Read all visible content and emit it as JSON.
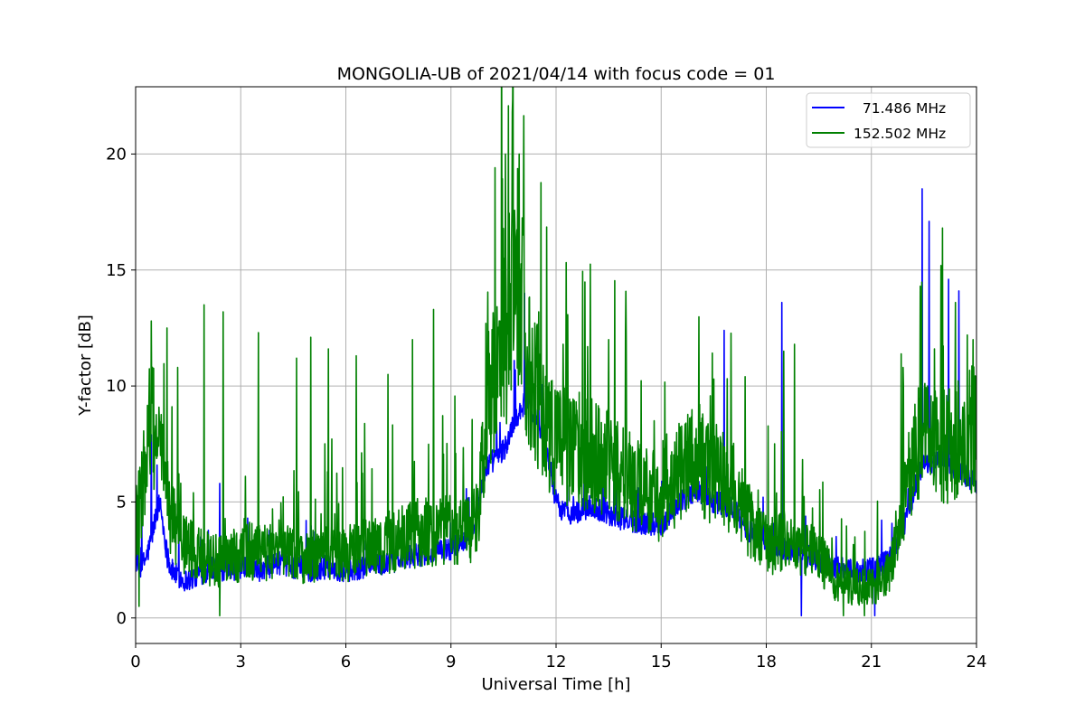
{
  "chart_data": {
    "type": "line",
    "title": "MONGOLIA-UB of 2021/04/14 with focus code = 01",
    "xlabel": "Universal Time [h]",
    "ylabel": "Y-factor [dB]",
    "xlim": [
      0,
      24
    ],
    "ylim": [
      -1.1,
      22.9
    ],
    "xticks": [
      0,
      3,
      6,
      9,
      12,
      15,
      18,
      21,
      24
    ],
    "yticks": [
      0,
      5,
      10,
      15,
      20
    ],
    "grid": true,
    "legend_position": "top-right",
    "series": [
      {
        "name": "  71.486 MHz",
        "color": "#0000ff",
        "x": [
          0,
          0.1,
          0.2,
          0.3,
          0.4,
          0.5,
          0.6,
          0.7,
          0.8,
          0.9,
          1.0,
          1.2,
          1.4,
          1.6,
          1.8,
          2.0,
          2.2,
          2.4,
          2.6,
          2.8,
          3.0,
          3.3,
          3.6,
          4.0,
          4.5,
          5.0,
          5.5,
          6.0,
          6.5,
          7.0,
          7.5,
          8.0,
          8.5,
          9.0,
          9.3,
          9.6,
          9.8,
          10.0,
          10.2,
          10.4,
          10.6,
          10.8,
          11.0,
          11.2,
          11.4,
          11.6,
          11.8,
          12.0,
          12.2,
          12.5,
          13.0,
          13.5,
          14.0,
          14.5,
          15.0,
          15.5,
          16.0,
          16.5,
          17.0,
          17.5,
          18.0,
          18.5,
          19.0,
          19.5,
          20.0,
          20.5,
          21.0,
          21.5,
          22.0,
          22.3,
          22.5,
          22.7,
          23.0,
          23.3,
          23.6,
          24.0
        ],
        "y": [
          2.5,
          2.1,
          2.3,
          2.6,
          3.1,
          3.8,
          4.6,
          5.0,
          3.8,
          2.7,
          2.1,
          1.8,
          1.6,
          1.7,
          1.9,
          2.0,
          2.2,
          2.1,
          2.0,
          2.1,
          2.2,
          2.3,
          2.0,
          2.4,
          2.2,
          2.0,
          2.2,
          2.0,
          2.2,
          2.3,
          2.5,
          2.7,
          2.8,
          3.0,
          3.3,
          3.8,
          5.0,
          6.5,
          6.8,
          7.0,
          7.5,
          8.5,
          9.0,
          9.5,
          8.6,
          7.8,
          6.8,
          5.0,
          4.6,
          4.5,
          4.8,
          4.5,
          4.2,
          4.1,
          4.0,
          5.0,
          5.5,
          5.0,
          4.8,
          3.8,
          3.2,
          3.0,
          2.8,
          2.5,
          2.2,
          2.0,
          2.1,
          2.5,
          4.2,
          6.0,
          6.8,
          6.5,
          7.0,
          6.5,
          6.2,
          5.8
        ],
        "spikes": [
          [
            0.45,
            7.9
          ],
          [
            0.7,
            5.1
          ],
          [
            2.4,
            5.8
          ],
          [
            10.3,
            8.5
          ],
          [
            10.8,
            11.1
          ],
          [
            11.1,
            14.0
          ],
          [
            11.5,
            10.3
          ],
          [
            16.8,
            12.4
          ],
          [
            18.45,
            13.6
          ],
          [
            22.45,
            18.5
          ],
          [
            22.65,
            17.1
          ],
          [
            23.2,
            14.6
          ],
          [
            23.5,
            14.1
          ],
          [
            19.0,
            0.1
          ],
          [
            21.1,
            0.1
          ]
        ]
      },
      {
        "name": "152.502 MHz",
        "color": "#008000",
        "x": [
          0,
          0.1,
          0.2,
          0.3,
          0.4,
          0.5,
          0.6,
          0.7,
          0.8,
          0.9,
          1.0,
          1.2,
          1.4,
          1.6,
          1.8,
          2.0,
          2.2,
          2.4,
          2.6,
          2.8,
          3.0,
          3.3,
          3.6,
          4.0,
          4.5,
          5.0,
          5.5,
          6.0,
          6.5,
          7.0,
          7.5,
          8.0,
          8.5,
          9.0,
          9.3,
          9.6,
          9.8,
          10.0,
          10.2,
          10.4,
          10.6,
          10.8,
          11.0,
          11.2,
          11.4,
          11.6,
          11.8,
          12.0,
          12.2,
          12.5,
          13.0,
          13.5,
          14.0,
          14.5,
          15.0,
          15.5,
          16.0,
          16.5,
          17.0,
          17.5,
          18.0,
          18.5,
          19.0,
          19.5,
          20.0,
          20.5,
          21.0,
          21.5,
          22.0,
          22.3,
          22.5,
          22.7,
          23.0,
          23.3,
          23.6,
          24.0
        ],
        "y": [
          4.0,
          4.5,
          5.5,
          6.5,
          7.5,
          8.0,
          7.5,
          6.8,
          6.0,
          5.0,
          4.2,
          3.5,
          3.0,
          2.8,
          2.6,
          2.5,
          2.4,
          2.3,
          2.4,
          2.5,
          2.7,
          2.8,
          2.6,
          2.9,
          2.7,
          2.5,
          2.7,
          2.6,
          2.9,
          3.0,
          3.2,
          3.5,
          3.6,
          3.8,
          3.5,
          3.8,
          4.5,
          9.0,
          10.0,
          10.5,
          12.0,
          15.0,
          13.5,
          10.5,
          9.5,
          8.5,
          8.0,
          7.5,
          7.2,
          7.0,
          6.8,
          6.5,
          5.8,
          5.3,
          5.0,
          6.0,
          6.5,
          6.0,
          5.5,
          4.0,
          3.0,
          3.3,
          3.0,
          2.5,
          1.5,
          1.3,
          1.2,
          1.8,
          5.5,
          7.0,
          7.5,
          7.2,
          7.0,
          7.5,
          7.5,
          8.0
        ],
        "spikes": [
          [
            0.45,
            12.8
          ],
          [
            0.9,
            12.5
          ],
          [
            1.2,
            10.8
          ],
          [
            1.95,
            13.5
          ],
          [
            2.5,
            13.2
          ],
          [
            3.5,
            12.3
          ],
          [
            4.6,
            11.2
          ],
          [
            5.0,
            12.1
          ],
          [
            5.5,
            11.6
          ],
          [
            6.3,
            11.3
          ],
          [
            7.2,
            10.5
          ],
          [
            7.9,
            12.0
          ],
          [
            8.5,
            13.3
          ],
          [
            10.0,
            12.7
          ],
          [
            10.35,
            12.3
          ],
          [
            10.55,
            20.0
          ],
          [
            10.75,
            21.8
          ],
          [
            10.95,
            20.0
          ],
          [
            11.5,
            13.2
          ],
          [
            12.2,
            11.8
          ],
          [
            12.9,
            11.7
          ],
          [
            13.5,
            12.0
          ],
          [
            14.0,
            12.1
          ],
          [
            14.8,
            8.5
          ],
          [
            16.1,
            9.2
          ],
          [
            16.5,
            10.3
          ],
          [
            17.4,
            10.4
          ],
          [
            18.5,
            11.5
          ],
          [
            18.8,
            11.8
          ],
          [
            21.9,
            10.8
          ],
          [
            22.4,
            14.3
          ],
          [
            22.8,
            11.6
          ],
          [
            23.4,
            13.6
          ],
          [
            23.9,
            12.0
          ],
          [
            0.1,
            0.5
          ],
          [
            2.4,
            0.1
          ],
          [
            20.2,
            0.1
          ],
          [
            20.8,
            0.1
          ]
        ]
      }
    ]
  }
}
